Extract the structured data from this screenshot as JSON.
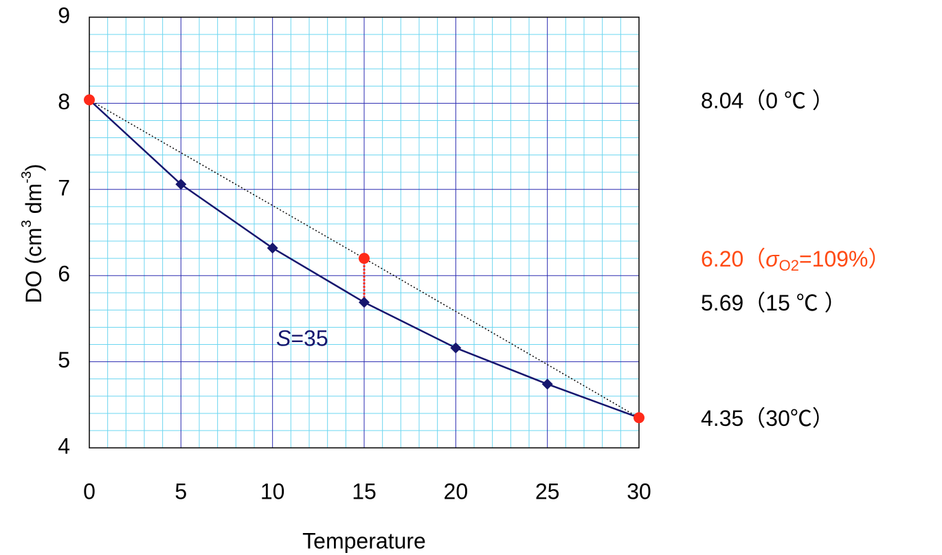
{
  "chart_data": {
    "type": "line",
    "xlabel": "Temperature",
    "ylabel": [
      "DO (cm",
      "3",
      " dm",
      "-3",
      ")"
    ],
    "x": [
      0,
      5,
      10,
      15,
      20,
      25,
      30
    ],
    "series": [
      {
        "color": "#16166e",
        "marker": "diamond",
        "values": [
          8.04,
          7.06,
          6.32,
          5.69,
          5.16,
          4.74,
          4.35
        ]
      },
      {
        "color": "#ff2a1a",
        "marker": "circle",
        "x": [
          0,
          15,
          30
        ],
        "values": [
          8.04,
          6.2,
          4.35
        ]
      }
    ],
    "xlim": [
      0,
      30
    ],
    "xticks": [
      0,
      5,
      10,
      15,
      20,
      25,
      30
    ],
    "ylim": [
      4,
      9
    ],
    "yticks": [
      4,
      5,
      6,
      7,
      8,
      9
    ],
    "grid": true,
    "minor_grid": true,
    "annotations": [
      {
        "parts": [
          "S",
          "=35"
        ],
        "color": "#16166e"
      },
      {
        "parts": [
          "8.04（0 ℃ ）"
        ],
        "color": "#000000"
      },
      {
        "parts": [
          "6.20（",
          "σ",
          "O2",
          "=109%）"
        ],
        "color": "#ff4a14"
      },
      {
        "parts": [
          "5.69（15 ℃ ）"
        ],
        "color": "#000000"
      },
      {
        "parts": [
          "4.35（30℃）"
        ],
        "color": "#000000"
      }
    ]
  }
}
